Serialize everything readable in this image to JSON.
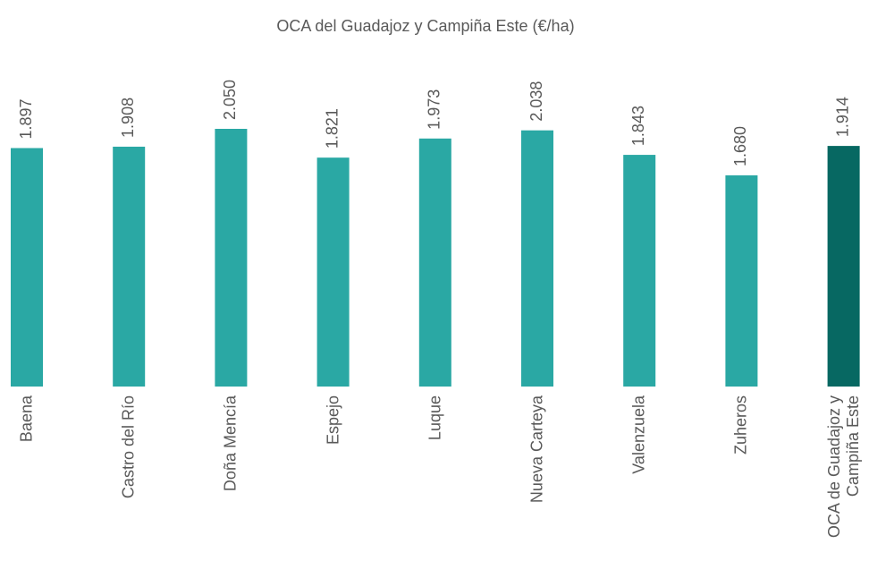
{
  "chart_data": {
    "type": "bar",
    "title": "OCA del Guadajoz y Campiña Este (€/ha)",
    "categories": [
      "Baena",
      "Castro del Río",
      "Doña Mencía",
      "Espejo",
      "Luque",
      "Nueva Carteya",
      "Valenzuela",
      "Zuheros",
      "OCA de Guadajoz y Campiña Este"
    ],
    "values": [
      1897,
      1908,
      2050,
      1821,
      1973,
      2038,
      1843,
      1680,
      1914
    ],
    "value_labels": [
      "1.897",
      "1.908",
      "2.050",
      "1.821",
      "1.973",
      "2.038",
      "1.843",
      "1.680",
      "1.914"
    ],
    "colors": [
      "#2aa8a4",
      "#2aa8a4",
      "#2aa8a4",
      "#2aa8a4",
      "#2aa8a4",
      "#2aa8a4",
      "#2aa8a4",
      "#2aa8a4",
      "#076862"
    ]
  }
}
